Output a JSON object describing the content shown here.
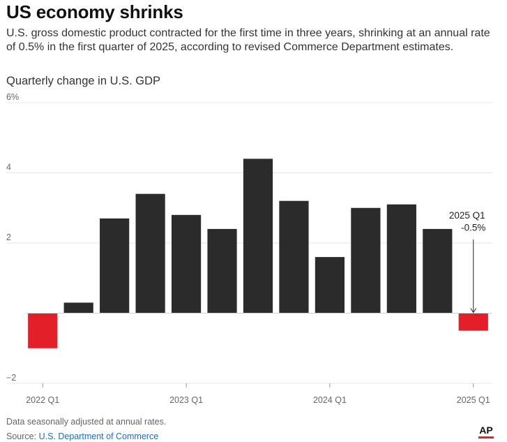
{
  "header": {
    "title": "US economy shrinks",
    "subtitle": "U.S. gross domestic product contracted for the first time in three years, shrinking at an annual rate of 0.5% in the first quarter of 2025, according to revised Commerce Department estimates.",
    "chart_label": "Quarterly change in U.S. GDP"
  },
  "footer": {
    "note": "Data seasonally adjusted at annual rates.",
    "source_prefix": "Source: ",
    "source_link": "U.S. Department of Commerce",
    "logo_text": "AP"
  },
  "colors": {
    "positive_bar": "#2b2b2b",
    "negative_bar": "#e3202a",
    "grid": "#e6e6e6",
    "axis_text": "#666666"
  },
  "chart_data": {
    "type": "bar",
    "categories": [
      "2022 Q1",
      "2022 Q2",
      "2022 Q3",
      "2022 Q4",
      "2023 Q1",
      "2023 Q2",
      "2023 Q3",
      "2023 Q4",
      "2024 Q1",
      "2024 Q2",
      "2024 Q3",
      "2024 Q4",
      "2025 Q1"
    ],
    "values": [
      -1.0,
      0.3,
      2.7,
      3.4,
      2.8,
      2.4,
      4.4,
      3.2,
      1.6,
      3.0,
      3.1,
      2.4,
      -0.5
    ],
    "ylim": [
      -2,
      6
    ],
    "y_ticks": [
      -2,
      2,
      4,
      6
    ],
    "y_tick_labels": [
      "−2",
      "2",
      "4",
      "6%"
    ],
    "x_tick_labels": [
      "2022 Q1",
      "2023 Q1",
      "2024 Q1",
      "2025 Q1"
    ],
    "x_tick_indices": [
      0,
      4,
      8,
      12
    ],
    "annotation": {
      "index": 12,
      "label_line1": "2025 Q1",
      "label_line2": "-0.5%"
    },
    "grid": true
  }
}
